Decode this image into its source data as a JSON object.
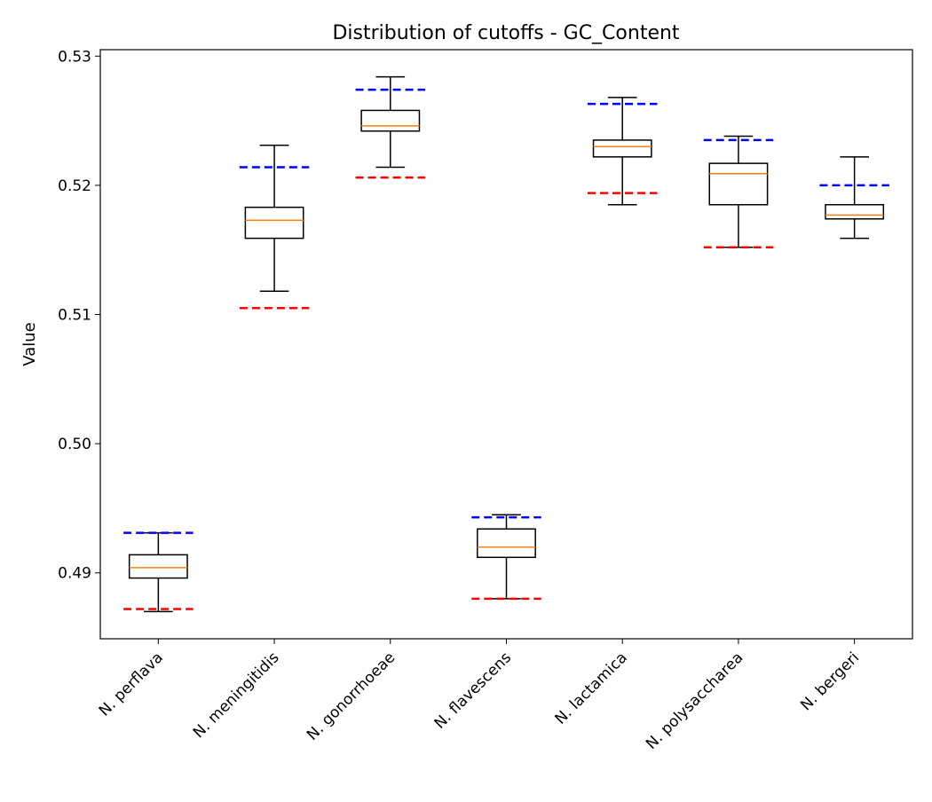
{
  "chart_data": {
    "type": "box",
    "title": "Distribution of cutoffs - GC_Content",
    "xlabel": "",
    "ylabel": "Value",
    "ylim": [
      0.4849,
      0.5305
    ],
    "yticks": [
      0.49,
      0.5,
      0.51,
      0.52,
      0.53
    ],
    "ytick_labels": [
      "0.49",
      "0.50",
      "0.51",
      "0.52",
      "0.53"
    ],
    "grid": false,
    "categories": [
      "N. perflava",
      "N. meningitidis",
      "N. gonorrhoeae",
      "N. flavescens",
      "N. lactamica",
      "N. polysaccharea",
      "N. bergeri"
    ],
    "boxes": [
      {
        "whisker_low": 0.487,
        "q1": 0.4896,
        "median": 0.4904,
        "q3": 0.4914,
        "whisker_high": 0.4931,
        "upper_cutoff": 0.4931,
        "lower_cutoff": 0.4872
      },
      {
        "whisker_low": 0.5118,
        "q1": 0.5159,
        "median": 0.5173,
        "q3": 0.5183,
        "whisker_high": 0.5231,
        "upper_cutoff": 0.5214,
        "lower_cutoff": 0.5105
      },
      {
        "whisker_low": 0.5214,
        "q1": 0.5242,
        "median": 0.5246,
        "q3": 0.5258,
        "whisker_high": 0.5284,
        "upper_cutoff": 0.5274,
        "lower_cutoff": 0.5206
      },
      {
        "whisker_low": 0.488,
        "q1": 0.4912,
        "median": 0.492,
        "q3": 0.4934,
        "whisker_high": 0.4945,
        "upper_cutoff": 0.4943,
        "lower_cutoff": 0.488
      },
      {
        "whisker_low": 0.5185,
        "q1": 0.5222,
        "median": 0.523,
        "q3": 0.5235,
        "whisker_high": 0.5268,
        "upper_cutoff": 0.5263,
        "lower_cutoff": 0.5194
      },
      {
        "whisker_low": 0.5152,
        "q1": 0.5185,
        "median": 0.5209,
        "q3": 0.5217,
        "whisker_high": 0.5238,
        "upper_cutoff": 0.5235,
        "lower_cutoff": 0.5152
      },
      {
        "whisker_low": 0.5159,
        "q1": 0.5174,
        "median": 0.5177,
        "q3": 0.5185,
        "whisker_high": 0.5222,
        "upper_cutoff": 0.52,
        "lower_cutoff": null
      }
    ],
    "colors": {
      "box": "#000000",
      "median": "#ff7f0e",
      "upper_cutoff": "#0000ff",
      "lower_cutoff": "#ff0000"
    }
  }
}
